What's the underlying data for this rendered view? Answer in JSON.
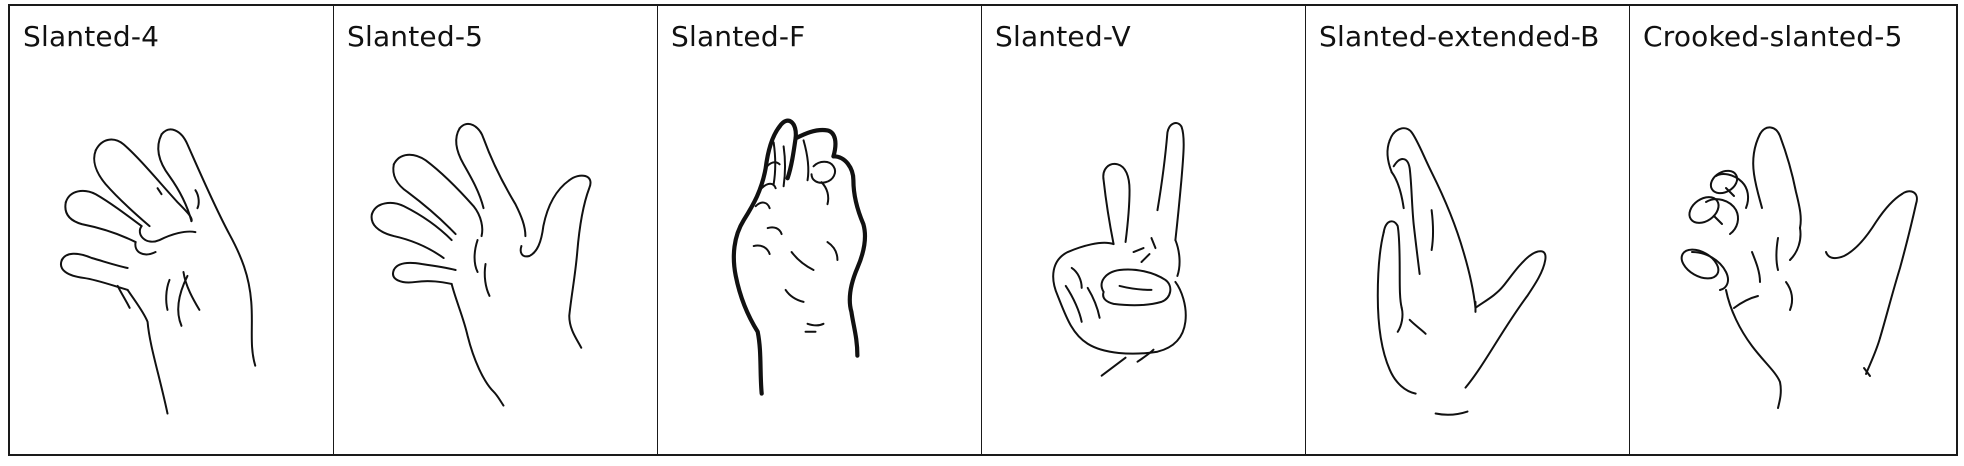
{
  "handshapes": [
    {
      "label": "Slanted-4",
      "icon": "slanted-4-hand-icon"
    },
    {
      "label": "Slanted-5",
      "icon": "slanted-5-hand-icon"
    },
    {
      "label": "Slanted-F",
      "icon": "slanted-f-hand-icon"
    },
    {
      "label": "Slanted-V",
      "icon": "slanted-v-hand-icon"
    },
    {
      "label": "Slanted-extended-B",
      "icon": "slanted-extended-b-hand-icon"
    },
    {
      "label": "Crooked-slanted-5",
      "icon": "crooked-slanted-5-hand-icon"
    }
  ]
}
